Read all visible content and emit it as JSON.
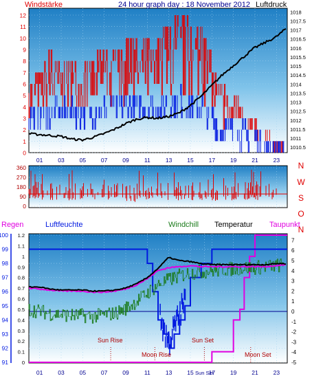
{
  "colors": {
    "red": "#e00000",
    "blue": "#0018e0",
    "black": "#000000",
    "green": "#1a7a1a",
    "magenta": "#e000e0",
    "dark_red": "#b00000",
    "dark_blue": "#000090",
    "axis_num": "#000000"
  },
  "top": {
    "title": "24 hour graph day : 18 November 2012",
    "left_label": "Windstärke",
    "right_label": "Luftdruck"
  },
  "wind": {
    "directions": [
      "N",
      "W",
      "S",
      "O",
      "N"
    ]
  },
  "bottom": {
    "labels": {
      "regen": "Regen",
      "luftfeuchte": "Luftfeuchte",
      "windchill": "Windchill",
      "temperatur": "Temperatur",
      "taupunkt": "Taupunkt"
    },
    "events": {
      "sun_rise": "Sun Rise",
      "moon_rise": "Moon Rise",
      "sun_set": "Sun Set",
      "moon_set": "Moon Set"
    }
  },
  "chart_data": [
    {
      "type": "line",
      "title": "24 hour graph day : 18 November 2012",
      "x_ticks": [
        "01",
        "03",
        "05",
        "07",
        "09",
        "11",
        "13",
        "15",
        "17",
        "19",
        "21",
        "23"
      ],
      "y_left_label": "Windstärke",
      "y_left_ticks": [
        "0",
        "1",
        "2",
        "3",
        "4",
        "5",
        "6",
        "7",
        "8",
        "9",
        "10",
        "11",
        "12"
      ],
      "y_left_range": [
        0,
        12.6
      ],
      "y_right_label": "Luftdruck",
      "y_right_ticks": [
        "1010.5",
        "1011",
        "1011.5",
        "1012",
        "1012.5",
        "1013",
        "1013.5",
        "1014",
        "1014.5",
        "1015",
        "1015.5",
        "1016",
        "1016.5",
        "1017",
        "1017.5",
        "1018"
      ],
      "y_right_range": [
        1010.2,
        1018.2
      ],
      "series": [
        {
          "name": "Windstärke",
          "axis": "left",
          "style": "gust spikes",
          "x": [
            0,
            2,
            4,
            6,
            8,
            10,
            12,
            14,
            16,
            18,
            20,
            22,
            24
          ],
          "y": [
            6.5,
            9,
            8,
            8.5,
            9,
            10,
            10,
            12,
            11,
            6,
            4,
            2,
            0.3
          ]
        },
        {
          "name": "Wind (mean)",
          "axis": "left",
          "style": "steps",
          "x": [
            0,
            2,
            4,
            6,
            8,
            10,
            12,
            14,
            16,
            18,
            20,
            22,
            24
          ],
          "y": [
            3,
            3.5,
            3.5,
            3.5,
            4,
            4,
            4,
            4.5,
            4,
            2,
            1.5,
            0.5,
            0
          ]
        },
        {
          "name": "Luftdruck",
          "axis": "right",
          "x": [
            0,
            1,
            2,
            3,
            4,
            5,
            6,
            7,
            8,
            9,
            10,
            11,
            12,
            13,
            14,
            15,
            16,
            17,
            18,
            19,
            20,
            21,
            22,
            23,
            24
          ],
          "y": [
            1011.25,
            1011.2,
            1011.15,
            1011.1,
            1010.95,
            1010.9,
            1011.05,
            1011.25,
            1011.5,
            1011.8,
            1012.05,
            1012.15,
            1012.1,
            1012.2,
            1012.4,
            1012.8,
            1013.3,
            1013.9,
            1014.5,
            1015.0,
            1015.5,
            1016.0,
            1016.3,
            1016.6,
            1017.1
          ]
        }
      ]
    },
    {
      "type": "scatter",
      "x_ticks": [
        "01",
        "03",
        "05",
        "07",
        "09",
        "11",
        "13",
        "15",
        "17",
        "19",
        "21",
        "23"
      ],
      "y_left_ticks": [
        "0",
        "90",
        "180",
        "270",
        "360"
      ],
      "y_range": [
        0,
        360
      ],
      "y_right_ticks": [
        "N",
        "W",
        "S",
        "O",
        "N"
      ],
      "series": [
        {
          "name": "Windrichtung",
          "x": [
            0,
            2,
            4,
            6,
            8,
            10,
            12,
            14,
            16,
            18,
            20,
            22,
            24
          ],
          "y": [
            120,
            115,
            105,
            110,
            100,
            95,
            115,
            110,
            105,
            105,
            110,
            115,
            115
          ]
        }
      ]
    },
    {
      "type": "line",
      "x_ticks": [
        "01",
        "03",
        "05",
        "07",
        "09",
        "11",
        "13",
        "15",
        "Sun Set",
        "17",
        "19",
        "21",
        "23"
      ],
      "y_left_label": "Luftfeuchte",
      "y_left_ticks": [
        "91",
        "92",
        "93",
        "94",
        "95",
        "96",
        "97",
        "98",
        "99",
        "100"
      ],
      "y_left_range": [
        91,
        100
      ],
      "y_rain_label": "Regen",
      "y_rain_ticks": [
        "0",
        "0.1",
        "0.2",
        "0.3",
        "0.4",
        "0.5",
        "0.6",
        "0.7",
        "0.8",
        "0.9",
        "1",
        "1.1",
        "1.2"
      ],
      "y_rain_range": [
        0,
        1.2
      ],
      "y_right_ticks": [
        "-5",
        "-4",
        "-3",
        "-2",
        "-1",
        "0",
        "1",
        "2",
        "3",
        "4",
        "5",
        "6",
        "7"
      ],
      "y_right_range": [
        -5,
        7.5
      ],
      "events": [
        "Sun Rise",
        "Moon Rise",
        "Sun Set",
        "Moon Set"
      ],
      "series": [
        {
          "name": "Temperatur",
          "axis": "right",
          "x": [
            0,
            1,
            2,
            3,
            4,
            5,
            6,
            7,
            8,
            9,
            10,
            11,
            12,
            13,
            14,
            15,
            16,
            17,
            18,
            19,
            20,
            21,
            22,
            23,
            24
          ],
          "y": [
            2.4,
            2.4,
            2.2,
            2.1,
            2.1,
            2.1,
            2.0,
            2.0,
            2.1,
            2.3,
            2.7,
            3.3,
            4.2,
            5.3,
            5.0,
            4.9,
            4.7,
            4.6,
            4.6,
            4.6,
            4.6,
            4.6,
            4.6,
            4.7,
            4.7
          ]
        },
        {
          "name": "Taupunkt",
          "axis": "right",
          "x": [
            0,
            1,
            2,
            3,
            4,
            5,
            6,
            7,
            8,
            9,
            10,
            11,
            12,
            13,
            14,
            15,
            16,
            17,
            18,
            19,
            20,
            21,
            22,
            23,
            24
          ],
          "y": [
            2.3,
            2.2,
            2.1,
            2.0,
            2.0,
            2.0,
            1.9,
            1.9,
            2.0,
            2.2,
            2.6,
            3.2,
            4.0,
            4.3,
            4.4,
            4.5,
            4.4,
            4.4,
            4.4,
            4.4,
            4.4,
            4.4,
            4.4,
            4.5,
            4.6
          ]
        },
        {
          "name": "Windchill",
          "axis": "right",
          "style": "noisy",
          "x": [
            0,
            1,
            2,
            3,
            4,
            5,
            6,
            7,
            8,
            9,
            10,
            11,
            12,
            13,
            14,
            15,
            16,
            17,
            18,
            19,
            20,
            21,
            22,
            23,
            24
          ],
          "y": [
            0.2,
            0.0,
            -0.2,
            -0.3,
            -0.4,
            -0.4,
            -0.5,
            -0.3,
            -0.2,
            0.3,
            1.0,
            1.8,
            2.6,
            3.1,
            3.5,
            3.8,
            3.9,
            4.0,
            4.1,
            4.2,
            4.3,
            4.3,
            4.4,
            4.5,
            4.6
          ]
        },
        {
          "name": "Luftfeuchte",
          "axis": "left",
          "style": "steps",
          "x": [
            0,
            10.6,
            11,
            11.5,
            12,
            12.5,
            13,
            13.5,
            14,
            14.5,
            15,
            16,
            17,
            18,
            24
          ],
          "y": [
            99,
            99,
            98,
            96,
            94,
            93,
            92,
            93,
            94,
            95,
            97,
            98,
            99,
            99,
            99
          ]
        },
        {
          "name": "Regen",
          "axis": "rain",
          "style": "steps",
          "x": [
            0,
            16.8,
            17,
            18.5,
            19,
            19.6,
            20,
            20.5,
            21,
            24
          ],
          "y": [
            0,
            0,
            0.1,
            0.1,
            0.4,
            0.5,
            0.8,
            1.0,
            1.2,
            1.2
          ]
        }
      ]
    }
  ]
}
